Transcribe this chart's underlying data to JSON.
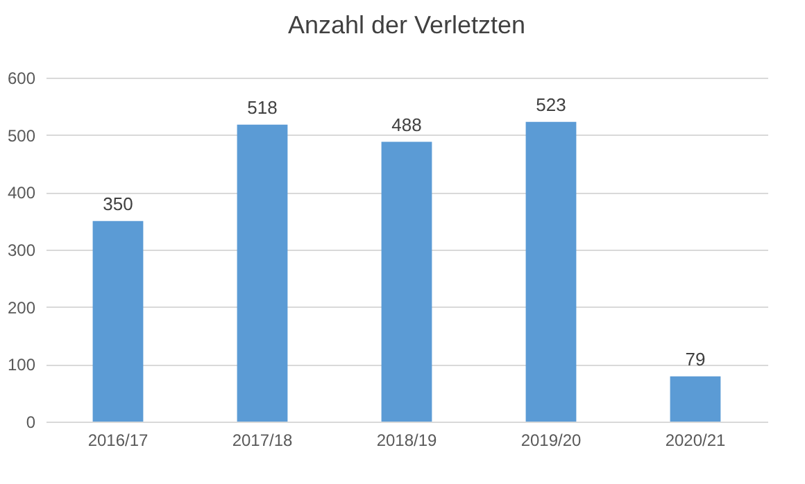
{
  "chart_data": {
    "type": "bar",
    "title": "Anzahl der Verletzten",
    "categories": [
      "2016/17",
      "2017/18",
      "2018/19",
      "2019/20",
      "2020/21"
    ],
    "values": [
      350,
      518,
      488,
      523,
      79
    ],
    "color": "#5b9bd5",
    "ylim": [
      0,
      600
    ],
    "yticks": [
      0,
      100,
      200,
      300,
      400,
      500,
      600
    ],
    "grid": "y",
    "data_labels": true
  }
}
